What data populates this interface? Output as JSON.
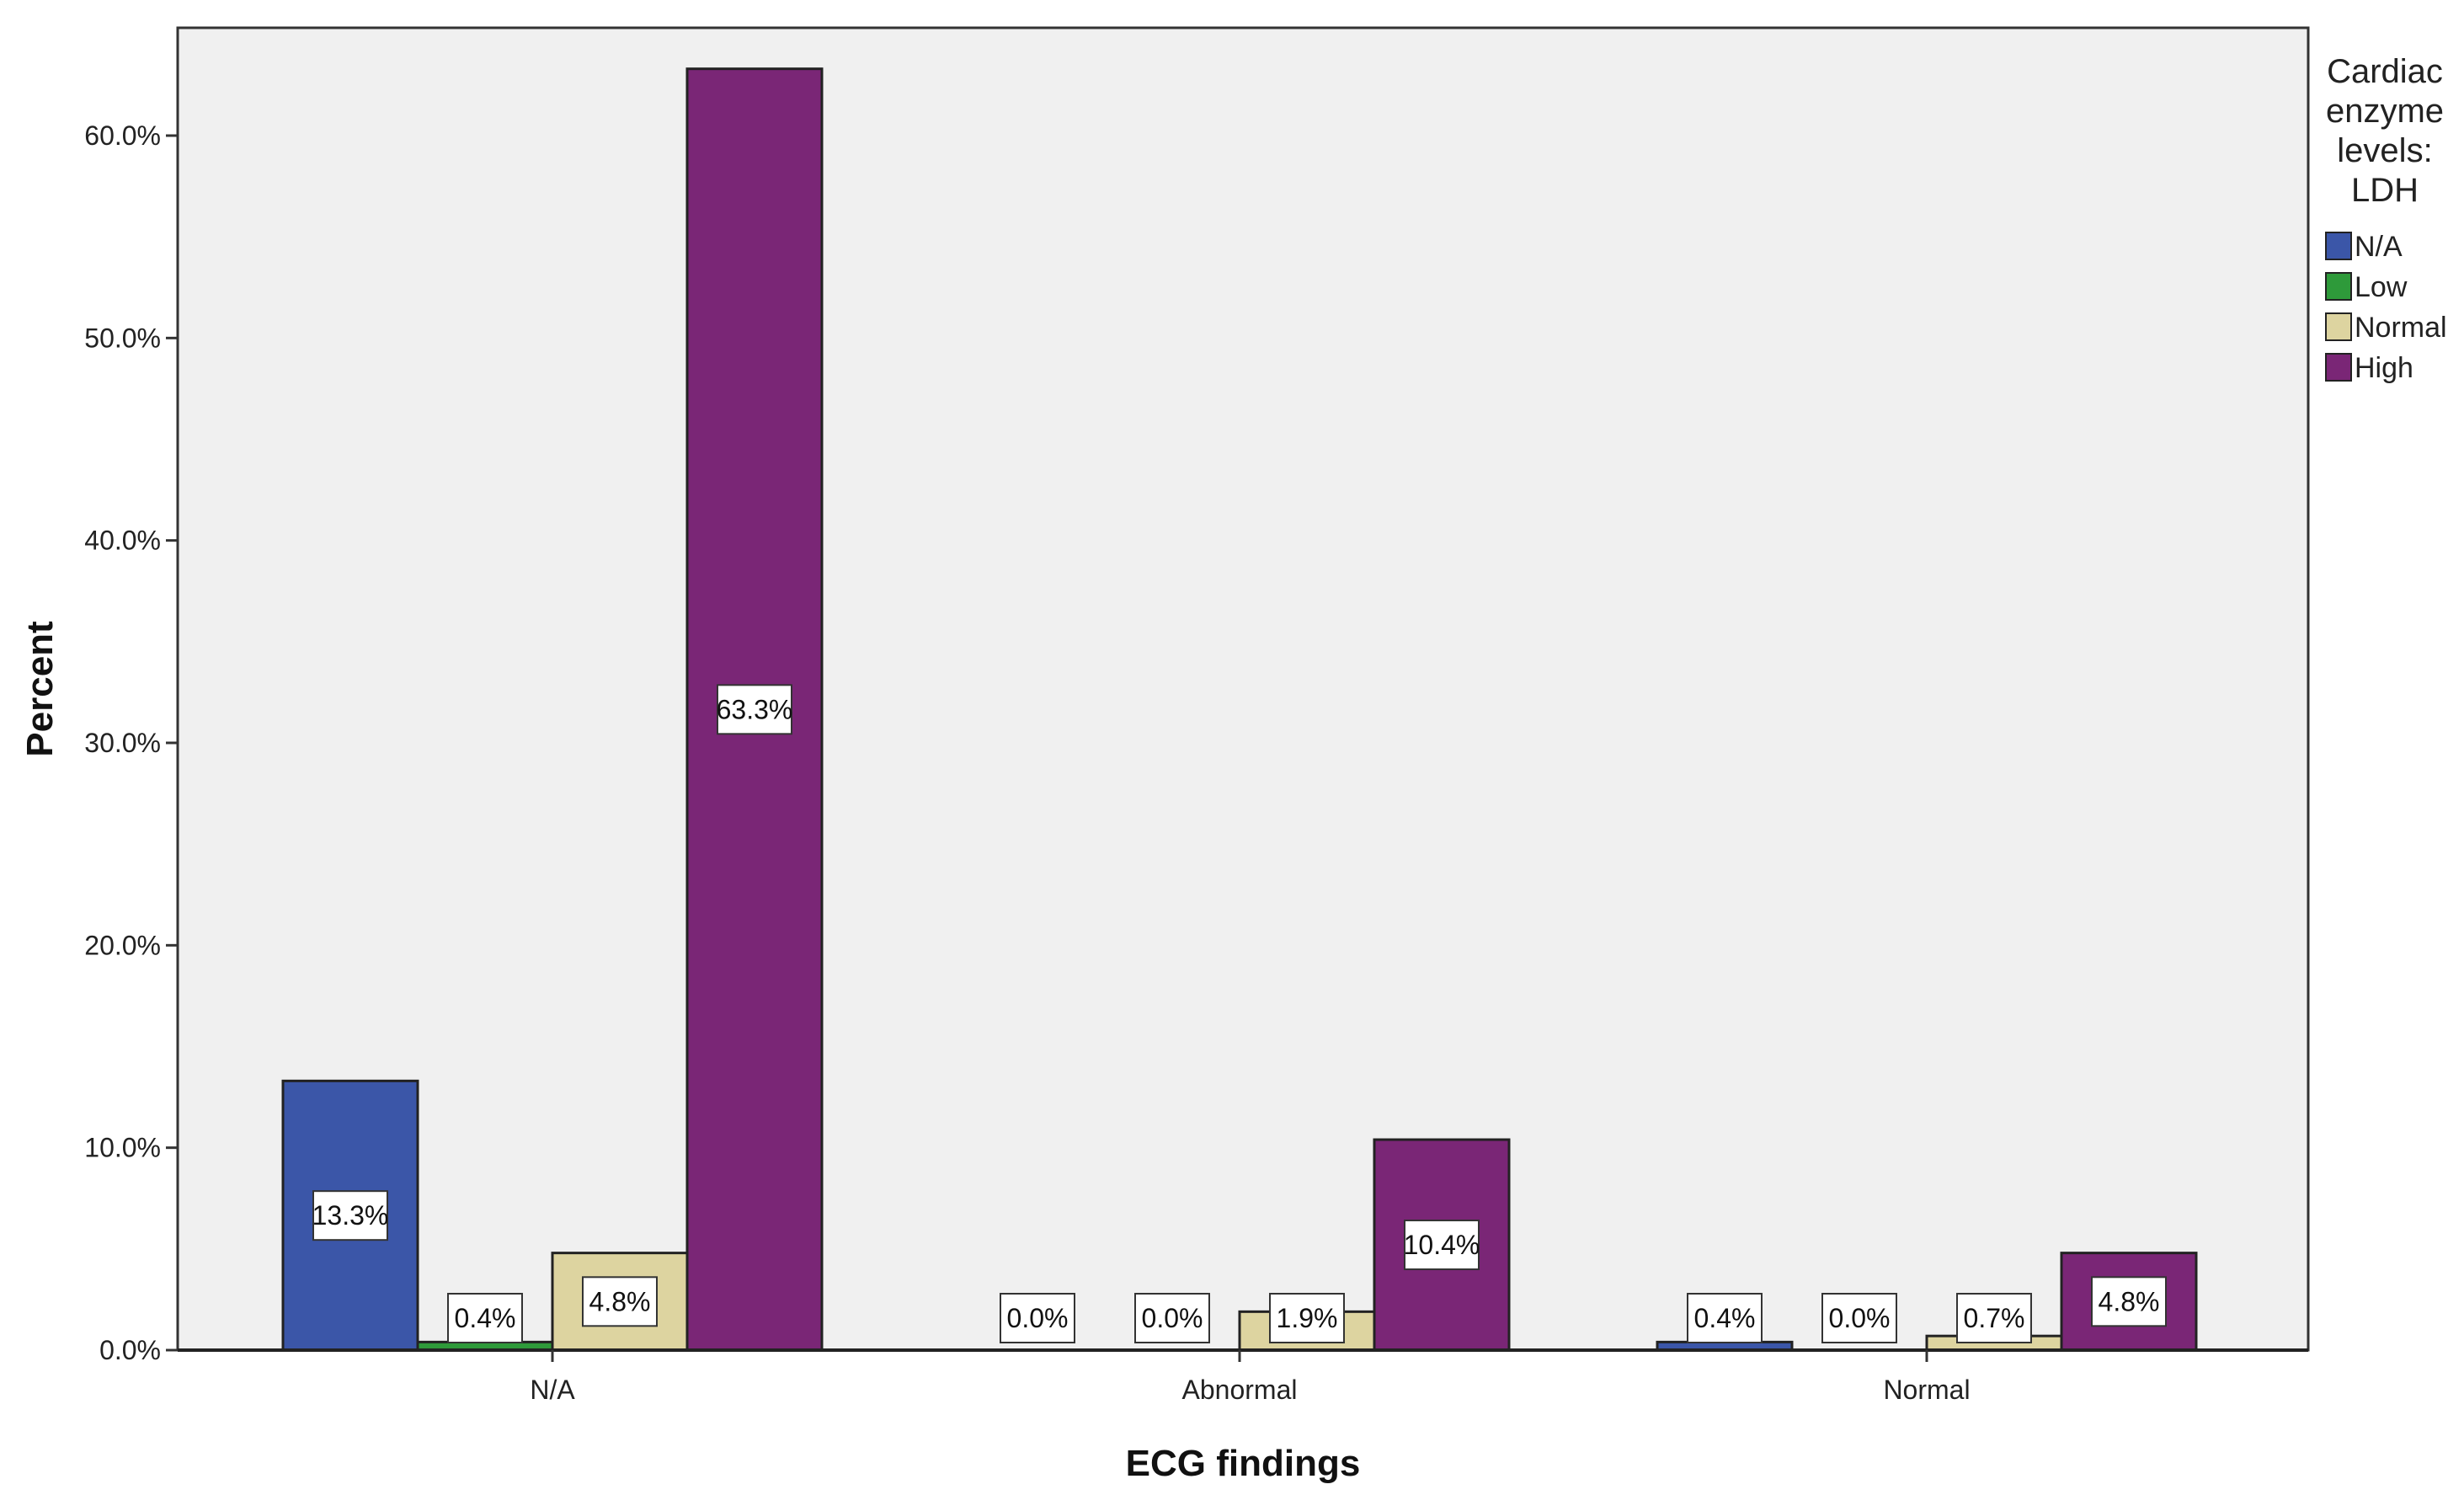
{
  "chart_data": {
    "type": "bar",
    "xlabel": "ECG findings",
    "ylabel": "Percent",
    "categories": [
      "N/A",
      "Abnormal",
      "Normal"
    ],
    "ylim": [
      0,
      67
    ],
    "yticks": [
      "0.0%",
      "10.0%",
      "20.0%",
      "30.0%",
      "40.0%",
      "50.0%",
      "60.0%"
    ],
    "ytick_values": [
      0,
      10,
      20,
      30,
      40,
      50,
      60
    ],
    "legend": {
      "title_lines": [
        "Cardiac",
        "enzyme",
        "levels:",
        "LDH"
      ],
      "placement": "right"
    },
    "series": [
      {
        "name": "N/A",
        "color": "#3b56a8",
        "values": [
          13.3,
          0.0,
          0.4
        ],
        "labels": [
          "13.3%",
          "0.0%",
          "0.4%"
        ]
      },
      {
        "name": "Low",
        "color": "#2e9a3a",
        "values": [
          0.4,
          0.0,
          0.0
        ],
        "labels": [
          "0.4%",
          "0.0%",
          "0.0%"
        ]
      },
      {
        "name": "Normal",
        "color": "#ddd4a0",
        "values": [
          4.8,
          1.9,
          0.7
        ],
        "labels": [
          "4.8%",
          "1.9%",
          "0.7%"
        ]
      },
      {
        "name": "High",
        "color": "#7a2676",
        "values": [
          63.3,
          10.4,
          4.8
        ],
        "labels": [
          "63.3%",
          "10.4%",
          "4.8%"
        ]
      }
    ],
    "grid": false,
    "plot_background": "#f0f0f0"
  }
}
